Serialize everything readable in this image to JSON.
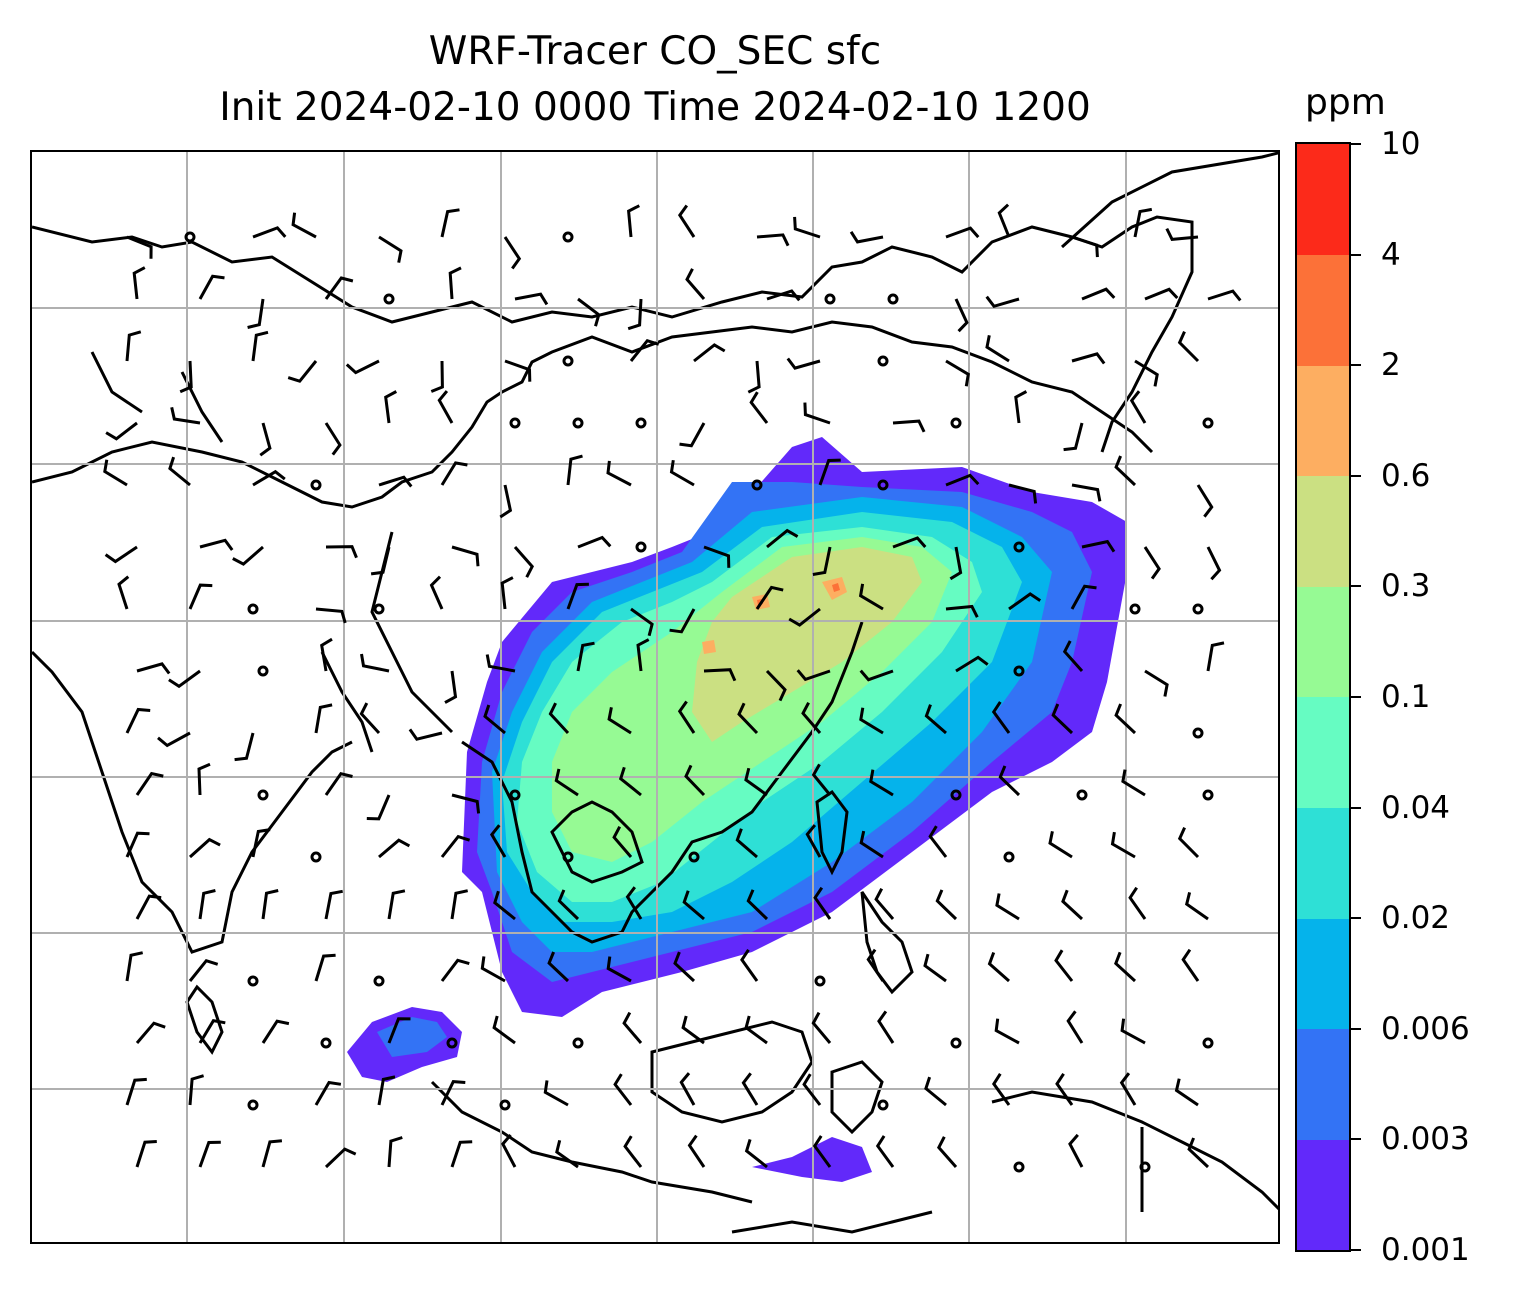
{
  "title": {
    "line1": "WRF-Tracer CO_SEC sfc",
    "line2": "Init 2024-02-10 0000 Time 2024-02-10 1200"
  },
  "colorbar": {
    "unit": "ppm",
    "levels": [
      "0.001",
      "0.003",
      "0.006",
      "0.02",
      "0.04",
      "0.1",
      "0.3",
      "0.6",
      "2",
      "4",
      "10"
    ],
    "colors": [
      "#6229fa",
      "#3373f5",
      "#05b3eb",
      "#2ee0d6",
      "#66fcc2",
      "#96fa94",
      "#cbe082",
      "#fdae61",
      "#fc7138",
      "#fc2a1a"
    ]
  },
  "map": {
    "variable": "CO_SEC tracer concentration (surface)",
    "overlay": "wind barbs",
    "gridlines": true
  }
}
